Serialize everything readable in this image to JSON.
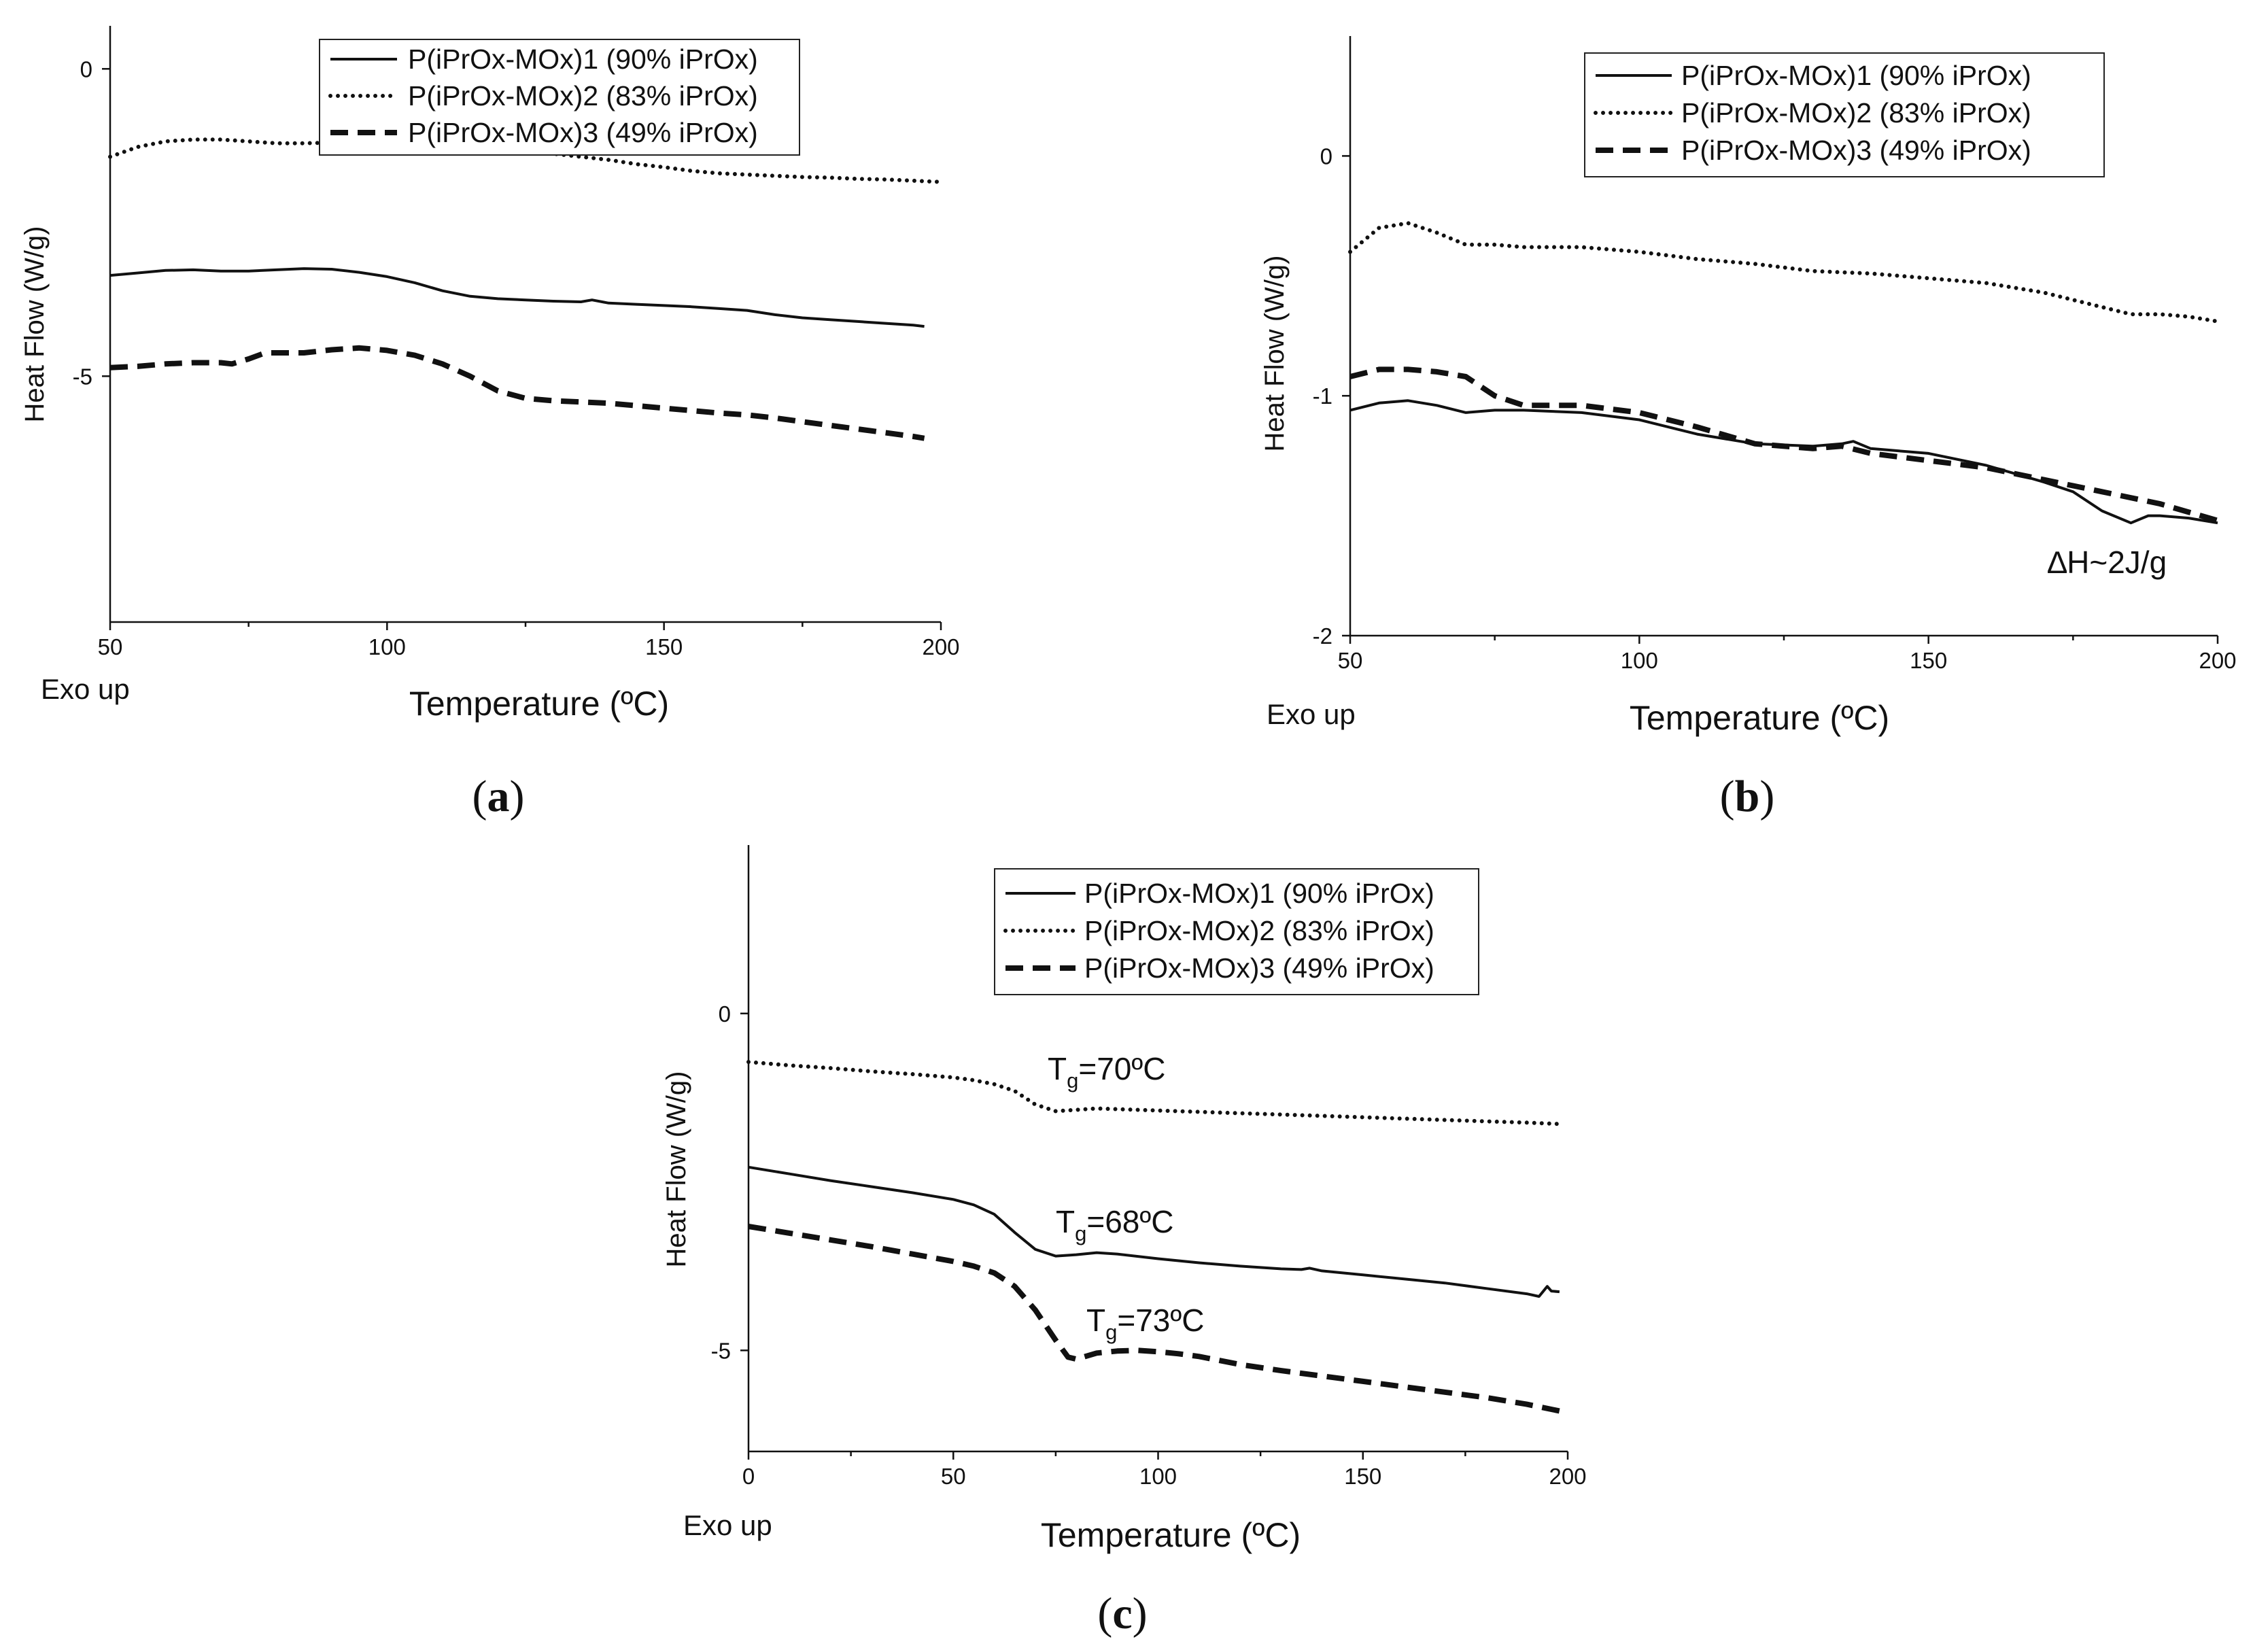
{
  "legend_entries": [
    "P(iPrOx-MOx)1 (90% iPrOx)",
    "P(iPrOx-MOx)2 (83% iPrOx)",
    "P(iPrOx-MOx)3 (49% iPrOx)"
  ],
  "chart_data": [
    {
      "type": "line",
      "panel_label": "a",
      "title": "",
      "xlabel": "Temperature (ºC)",
      "ylabel": "Heat Flow (W/g)",
      "exo_label": "Exo up",
      "xlim": [
        50,
        200
      ],
      "ylim": [
        -9,
        0.7
      ],
      "x_ticks": [
        50,
        100,
        150,
        200
      ],
      "y_ticks": [
        0,
        -5
      ],
      "grid": false,
      "legend_position": "top-center",
      "series": [
        {
          "name": "P(iPrOx-MOx)1 (90% iPrOx)",
          "style": "solid",
          "points": [
            [
              50,
              -3.36
            ],
            [
              55,
              -3.32
            ],
            [
              60,
              -3.28
            ],
            [
              65,
              -3.27
            ],
            [
              70,
              -3.29
            ],
            [
              75,
              -3.29
            ],
            [
              80,
              -3.27
            ],
            [
              85,
              -3.25
            ],
            [
              90,
              -3.26
            ],
            [
              95,
              -3.31
            ],
            [
              100,
              -3.38
            ],
            [
              105,
              -3.48
            ],
            [
              110,
              -3.61
            ],
            [
              115,
              -3.7
            ],
            [
              120,
              -3.74
            ],
            [
              125,
              -3.76
            ],
            [
              130,
              -3.78
            ],
            [
              135,
              -3.79
            ],
            [
              137,
              -3.76
            ],
            [
              140,
              -3.81
            ],
            [
              145,
              -3.83
            ],
            [
              150,
              -3.85
            ],
            [
              155,
              -3.87
            ],
            [
              160,
              -3.9
            ],
            [
              165,
              -3.93
            ],
            [
              170,
              -4.0
            ],
            [
              175,
              -4.05
            ],
            [
              180,
              -4.08
            ],
            [
              185,
              -4.11
            ],
            [
              190,
              -4.14
            ],
            [
              195,
              -4.17
            ],
            [
              197,
              -4.19
            ]
          ]
        },
        {
          "name": "P(iPrOx-MOx)2 (83% iPrOx)",
          "style": "dotted",
          "points": [
            [
              50,
              -1.43
            ],
            [
              55,
              -1.27
            ],
            [
              60,
              -1.18
            ],
            [
              65,
              -1.15
            ],
            [
              70,
              -1.15
            ],
            [
              75,
              -1.18
            ],
            [
              80,
              -1.21
            ],
            [
              85,
              -1.21
            ],
            [
              90,
              -1.2
            ],
            [
              95,
              -1.2
            ],
            [
              100,
              -1.21
            ],
            [
              105,
              -1.22
            ],
            [
              110,
              -1.24
            ],
            [
              115,
              -1.27
            ],
            [
              120,
              -1.3
            ],
            [
              125,
              -1.34
            ],
            [
              130,
              -1.38
            ],
            [
              135,
              -1.43
            ],
            [
              140,
              -1.48
            ],
            [
              145,
              -1.55
            ],
            [
              150,
              -1.6
            ],
            [
              155,
              -1.66
            ],
            [
              160,
              -1.7
            ],
            [
              165,
              -1.72
            ],
            [
              170,
              -1.74
            ],
            [
              175,
              -1.76
            ],
            [
              180,
              -1.77
            ],
            [
              185,
              -1.79
            ],
            [
              190,
              -1.8
            ],
            [
              195,
              -1.82
            ],
            [
              200,
              -1.84
            ]
          ]
        },
        {
          "name": "P(iPrOx-MOx)3 (49% iPrOx)",
          "style": "dashed",
          "points": [
            [
              50,
              -4.86
            ],
            [
              55,
              -4.84
            ],
            [
              60,
              -4.8
            ],
            [
              65,
              -4.78
            ],
            [
              70,
              -4.78
            ],
            [
              72,
              -4.8
            ],
            [
              75,
              -4.72
            ],
            [
              78,
              -4.62
            ],
            [
              80,
              -4.62
            ],
            [
              85,
              -4.62
            ],
            [
              90,
              -4.57
            ],
            [
              95,
              -4.54
            ],
            [
              100,
              -4.58
            ],
            [
              105,
              -4.66
            ],
            [
              110,
              -4.8
            ],
            [
              115,
              -5.0
            ],
            [
              120,
              -5.24
            ],
            [
              125,
              -5.36
            ],
            [
              130,
              -5.4
            ],
            [
              135,
              -5.42
            ],
            [
              140,
              -5.44
            ],
            [
              145,
              -5.48
            ],
            [
              150,
              -5.52
            ],
            [
              155,
              -5.56
            ],
            [
              160,
              -5.6
            ],
            [
              165,
              -5.63
            ],
            [
              170,
              -5.68
            ],
            [
              175,
              -5.74
            ],
            [
              180,
              -5.8
            ],
            [
              185,
              -5.86
            ],
            [
              190,
              -5.92
            ],
            [
              195,
              -5.98
            ],
            [
              197,
              -6.01
            ]
          ]
        }
      ]
    },
    {
      "type": "line",
      "panel_label": "b",
      "title": "",
      "xlabel": "Temperature (ºC)",
      "ylabel": "Heat Flow (W/g)",
      "exo_label": "Exo up",
      "annotation": "∆H~2J/g",
      "xlim": [
        50,
        200
      ],
      "ylim": [
        -2,
        0.5
      ],
      "x_ticks": [
        50,
        100,
        150,
        200
      ],
      "y_ticks": [
        0,
        -1,
        -2
      ],
      "grid": false,
      "legend_position": "top-right",
      "series": [
        {
          "name": "P(iPrOx-MOx)1 (90% iPrOx)",
          "style": "solid",
          "points": [
            [
              50,
              -1.06
            ],
            [
              55,
              -1.03
            ],
            [
              60,
              -1.02
            ],
            [
              65,
              -1.04
            ],
            [
              70,
              -1.07
            ],
            [
              75,
              -1.06
            ],
            [
              80,
              -1.06
            ],
            [
              90,
              -1.07
            ],
            [
              100,
              -1.1
            ],
            [
              110,
              -1.16
            ],
            [
              120,
              -1.2
            ],
            [
              130,
              -1.21
            ],
            [
              135,
              -1.2
            ],
            [
              137,
              -1.19
            ],
            [
              140,
              -1.22
            ],
            [
              150,
              -1.24
            ],
            [
              160,
              -1.29
            ],
            [
              170,
              -1.36
            ],
            [
              175,
              -1.4
            ],
            [
              180,
              -1.48
            ],
            [
              185,
              -1.53
            ],
            [
              188,
              -1.5
            ],
            [
              190,
              -1.5
            ],
            [
              195,
              -1.51
            ],
            [
              200,
              -1.53
            ]
          ]
        },
        {
          "name": "P(iPrOx-MOx)2 (83% iPrOx)",
          "style": "dotted",
          "points": [
            [
              50,
              -0.4
            ],
            [
              55,
              -0.3
            ],
            [
              60,
              -0.28
            ],
            [
              65,
              -0.32
            ],
            [
              70,
              -0.37
            ],
            [
              75,
              -0.37
            ],
            [
              80,
              -0.38
            ],
            [
              90,
              -0.38
            ],
            [
              100,
              -0.4
            ],
            [
              110,
              -0.43
            ],
            [
              120,
              -0.45
            ],
            [
              130,
              -0.48
            ],
            [
              140,
              -0.49
            ],
            [
              150,
              -0.51
            ],
            [
              160,
              -0.53
            ],
            [
              170,
              -0.57
            ],
            [
              175,
              -0.6
            ],
            [
              180,
              -0.63
            ],
            [
              185,
              -0.66
            ],
            [
              190,
              -0.66
            ],
            [
              195,
              -0.67
            ],
            [
              200,
              -0.69
            ]
          ]
        },
        {
          "name": "P(iPrOx-MOx)3 (49% iPrOx)",
          "style": "dashed",
          "points": [
            [
              50,
              -0.92
            ],
            [
              55,
              -0.89
            ],
            [
              60,
              -0.89
            ],
            [
              65,
              -0.9
            ],
            [
              70,
              -0.92
            ],
            [
              75,
              -1.0
            ],
            [
              80,
              -1.04
            ],
            [
              90,
              -1.04
            ],
            [
              100,
              -1.07
            ],
            [
              110,
              -1.13
            ],
            [
              120,
              -1.2
            ],
            [
              130,
              -1.22
            ],
            [
              135,
              -1.21
            ],
            [
              140,
              -1.24
            ],
            [
              150,
              -1.27
            ],
            [
              160,
              -1.3
            ],
            [
              170,
              -1.35
            ],
            [
              180,
              -1.4
            ],
            [
              190,
              -1.45
            ],
            [
              200,
              -1.52
            ]
          ]
        }
      ]
    },
    {
      "type": "line",
      "panel_label": "c",
      "title": "",
      "xlabel": "Temperature (ºC)",
      "ylabel": "Heat Flow (W/g)",
      "exo_label": "Exo up",
      "annotations": [
        {
          "main": "T",
          "sub": "g",
          "rest": "=70ºC"
        },
        {
          "main": "T",
          "sub": "g",
          "rest": "=68ºC"
        },
        {
          "main": "T",
          "sub": "g",
          "rest": "=73ºC"
        }
      ],
      "xlim": [
        0,
        200
      ],
      "ylim": [
        -6.5,
        2.5
      ],
      "x_ticks": [
        0,
        50,
        100,
        150,
        200
      ],
      "y_ticks": [
        0,
        -5
      ],
      "grid": false,
      "legend_position": "top-center",
      "series": [
        {
          "name": "P(iPrOx-MOx)1 (90% iPrOx)",
          "style": "solid",
          "points": [
            [
              0,
              -2.28
            ],
            [
              10,
              -2.38
            ],
            [
              20,
              -2.48
            ],
            [
              30,
              -2.57
            ],
            [
              40,
              -2.66
            ],
            [
              50,
              -2.76
            ],
            [
              55,
              -2.84
            ],
            [
              60,
              -2.98
            ],
            [
              65,
              -3.25
            ],
            [
              70,
              -3.5
            ],
            [
              75,
              -3.6
            ],
            [
              80,
              -3.58
            ],
            [
              85,
              -3.55
            ],
            [
              90,
              -3.57
            ],
            [
              100,
              -3.64
            ],
            [
              110,
              -3.7
            ],
            [
              120,
              -3.75
            ],
            [
              130,
              -3.79
            ],
            [
              135,
              -3.8
            ],
            [
              137,
              -3.78
            ],
            [
              140,
              -3.82
            ],
            [
              150,
              -3.88
            ],
            [
              160,
              -3.94
            ],
            [
              170,
              -4.0
            ],
            [
              180,
              -4.08
            ],
            [
              190,
              -4.16
            ],
            [
              193,
              -4.2
            ],
            [
              195,
              -4.05
            ],
            [
              196,
              -4.12
            ],
            [
              198,
              -4.13
            ]
          ]
        },
        {
          "name": "P(iPrOx-MOx)2 (83% iPrOx)",
          "style": "dotted",
          "points": [
            [
              0,
              -0.72
            ],
            [
              10,
              -0.77
            ],
            [
              20,
              -0.81
            ],
            [
              30,
              -0.86
            ],
            [
              40,
              -0.9
            ],
            [
              50,
              -0.95
            ],
            [
              55,
              -0.99
            ],
            [
              60,
              -1.05
            ],
            [
              65,
              -1.15
            ],
            [
              70,
              -1.35
            ],
            [
              75,
              -1.45
            ],
            [
              80,
              -1.43
            ],
            [
              85,
              -1.41
            ],
            [
              90,
              -1.42
            ],
            [
              100,
              -1.44
            ],
            [
              110,
              -1.46
            ],
            [
              120,
              -1.48
            ],
            [
              130,
              -1.5
            ],
            [
              140,
              -1.52
            ],
            [
              150,
              -1.54
            ],
            [
              160,
              -1.56
            ],
            [
              170,
              -1.58
            ],
            [
              180,
              -1.6
            ],
            [
              190,
              -1.62
            ],
            [
              198,
              -1.64
            ]
          ]
        },
        {
          "name": "P(iPrOx-MOx)3 (49% iPrOx)",
          "style": "dashed",
          "points": [
            [
              0,
              -3.16
            ],
            [
              10,
              -3.26
            ],
            [
              20,
              -3.36
            ],
            [
              30,
              -3.46
            ],
            [
              40,
              -3.57
            ],
            [
              50,
              -3.68
            ],
            [
              55,
              -3.75
            ],
            [
              60,
              -3.85
            ],
            [
              65,
              -4.05
            ],
            [
              70,
              -4.4
            ],
            [
              75,
              -4.85
            ],
            [
              78,
              -5.1
            ],
            [
              80,
              -5.13
            ],
            [
              85,
              -5.04
            ],
            [
              90,
              -5.01
            ],
            [
              95,
              -5.0
            ],
            [
              100,
              -5.02
            ],
            [
              105,
              -5.05
            ],
            [
              110,
              -5.09
            ],
            [
              120,
              -5.21
            ],
            [
              130,
              -5.3
            ],
            [
              140,
              -5.38
            ],
            [
              150,
              -5.46
            ],
            [
              160,
              -5.54
            ],
            [
              170,
              -5.62
            ],
            [
              180,
              -5.7
            ],
            [
              190,
              -5.8
            ],
            [
              198,
              -5.9
            ]
          ]
        }
      ]
    }
  ]
}
